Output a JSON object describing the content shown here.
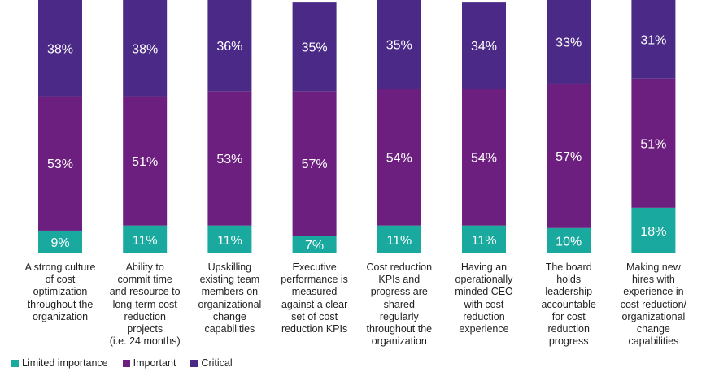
{
  "chart_data": {
    "type": "bar",
    "stacked": true,
    "normalized": true,
    "categories": [
      "A strong culture\nof cost\noptimization\nthroughout the\norganization",
      "Ability to\ncommit time\nand resource to\nlong-term cost\nreduction\nprojects\n(i.e. 24 months)",
      "Upskilling\nexisting team\nmembers on\norganizational\nchange\ncapabilities",
      "Executive\nperformance is\nmeasured\nagainst a clear\nset of cost\nreduction KPIs",
      "Cost reduction\nKPIs and\nprogress are\nshared\nregularly\nthroughout the\norganization",
      "Having an\noperationally\nminded CEO\nwith cost\nreduction\nexperience",
      "The board\nholds\nleadership\naccountable\nfor cost\nreduction\nprogress",
      "Making new\nhires with\nexperience in\ncost reduction/\norganizational\nchange\ncapabilities"
    ],
    "series": [
      {
        "name": "Limited importance",
        "color": "#1aa99e",
        "values": [
          9,
          11,
          11,
          7,
          11,
          11,
          10,
          18
        ],
        "labels": [
          "9%",
          "11%",
          "11%",
          "7%",
          "11%",
          "11%",
          "10%",
          "18%"
        ]
      },
      {
        "name": "Important",
        "color": "#6c1f7e",
        "values": [
          53,
          51,
          53,
          57,
          54,
          54,
          57,
          51
        ],
        "labels": [
          "53%",
          "51%",
          "53%",
          "57%",
          "54%",
          "54%",
          "57%",
          "51%"
        ]
      },
      {
        "name": "Critical",
        "color": "#4a2a86",
        "values": [
          38,
          38,
          36,
          35,
          35,
          34,
          33,
          31
        ],
        "labels": [
          "38%",
          "38%",
          "36%",
          "35%",
          "35%",
          "34%",
          "33%",
          "31%"
        ]
      }
    ],
    "legend_position": "bottom-left",
    "title": "",
    "xlabel": "",
    "ylabel": ""
  }
}
